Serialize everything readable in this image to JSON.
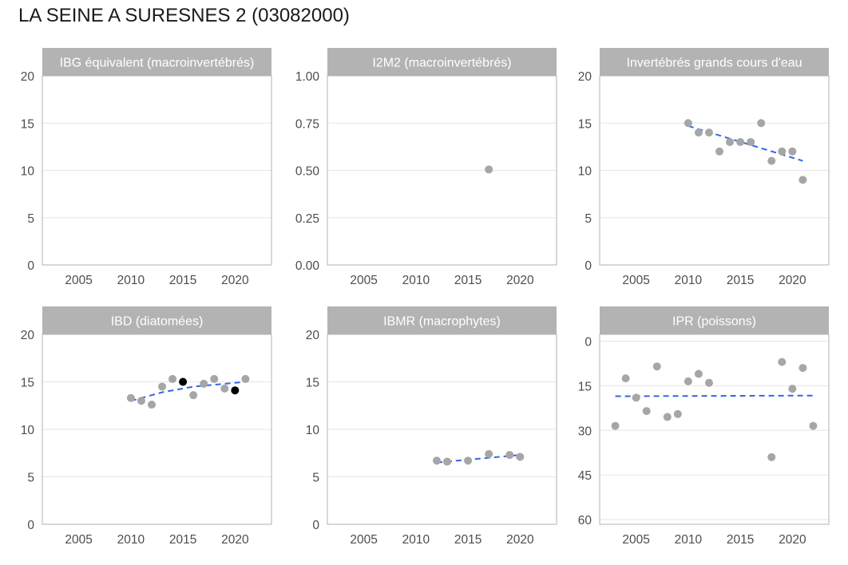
{
  "page": {
    "title": "LA SEINE A SURESNES 2 (03082000)"
  },
  "chart_data": [
    {
      "type": "scatter",
      "title": "IBG équivalent (macroinvertébrés)",
      "xlim": [
        2001.5,
        2023.5
      ],
      "ylim": [
        0,
        20
      ],
      "x_ticks": [
        2005,
        2010,
        2015,
        2020
      ],
      "y_ticks": [
        0,
        5,
        10,
        15,
        20
      ],
      "y_tick_labels": [
        "0",
        "5",
        "10",
        "15",
        "20"
      ],
      "y_reversed": false,
      "points": [],
      "trend": null
    },
    {
      "type": "scatter",
      "title": "I2M2 (macroinvertébrés)",
      "xlim": [
        2001.5,
        2023.5
      ],
      "ylim": [
        0,
        1
      ],
      "x_ticks": [
        2005,
        2010,
        2015,
        2020
      ],
      "y_ticks": [
        0,
        0.25,
        0.5,
        0.75,
        1
      ],
      "y_tick_labels": [
        "0.00",
        "0.25",
        "0.50",
        "0.75",
        "1.00"
      ],
      "y_reversed": false,
      "points": [
        {
          "x": 2017,
          "y": 0.505,
          "color": "#a6a6a6"
        }
      ],
      "trend": null
    },
    {
      "type": "scatter",
      "title": "Invertébrés grands cours d'eau",
      "xlim": [
        2001.5,
        2023.5
      ],
      "ylim": [
        0,
        20
      ],
      "x_ticks": [
        2005,
        2010,
        2015,
        2020
      ],
      "y_ticks": [
        0,
        5,
        10,
        15,
        20
      ],
      "y_tick_labels": [
        "0",
        "5",
        "10",
        "15",
        "20"
      ],
      "y_reversed": false,
      "points": [
        {
          "x": 2010,
          "y": 15,
          "color": "#a6a6a6"
        },
        {
          "x": 2011,
          "y": 14,
          "color": "#a6a6a6"
        },
        {
          "x": 2012,
          "y": 14,
          "color": "#a6a6a6"
        },
        {
          "x": 2013,
          "y": 12,
          "color": "#a6a6a6"
        },
        {
          "x": 2014,
          "y": 13,
          "color": "#a6a6a6"
        },
        {
          "x": 2015,
          "y": 13,
          "color": "#a6a6a6"
        },
        {
          "x": 2016,
          "y": 13,
          "color": "#a6a6a6"
        },
        {
          "x": 2017,
          "y": 15,
          "color": "#a6a6a6"
        },
        {
          "x": 2018,
          "y": 11,
          "color": "#a6a6a6"
        },
        {
          "x": 2019,
          "y": 12,
          "color": "#a6a6a6"
        },
        {
          "x": 2020,
          "y": 12,
          "color": "#a6a6a6"
        },
        {
          "x": 2021,
          "y": 9,
          "color": "#a6a6a6"
        }
      ],
      "trend": {
        "x": [
          2010,
          2021
        ],
        "y": [
          14.7,
          11.0
        ],
        "color": "#3366e6"
      }
    },
    {
      "type": "scatter",
      "title": "IBD (diatomées)",
      "xlim": [
        2001.5,
        2023.5
      ],
      "ylim": [
        0,
        20
      ],
      "x_ticks": [
        2005,
        2010,
        2015,
        2020
      ],
      "y_ticks": [
        0,
        5,
        10,
        15,
        20
      ],
      "y_tick_labels": [
        "0",
        "5",
        "10",
        "15",
        "20"
      ],
      "y_reversed": false,
      "points": [
        {
          "x": 2010,
          "y": 13.3,
          "color": "#a6a6a6"
        },
        {
          "x": 2011,
          "y": 13.0,
          "color": "#a6a6a6"
        },
        {
          "x": 2012,
          "y": 12.6,
          "color": "#a6a6a6"
        },
        {
          "x": 2013,
          "y": 14.5,
          "color": "#a6a6a6"
        },
        {
          "x": 2014,
          "y": 15.3,
          "color": "#a6a6a6"
        },
        {
          "x": 2015,
          "y": 15.0,
          "color": "#000000"
        },
        {
          "x": 2016,
          "y": 13.6,
          "color": "#a6a6a6"
        },
        {
          "x": 2017,
          "y": 14.8,
          "color": "#a6a6a6"
        },
        {
          "x": 2018,
          "y": 15.3,
          "color": "#a6a6a6"
        },
        {
          "x": 2019,
          "y": 14.3,
          "color": "#a6a6a6"
        },
        {
          "x": 2020,
          "y": 14.1,
          "color": "#000000"
        },
        {
          "x": 2021,
          "y": 15.3,
          "color": "#a6a6a6"
        }
      ],
      "trend": {
        "x": [
          2010,
          2013,
          2016,
          2019,
          2021
        ],
        "y": [
          13.0,
          13.9,
          14.5,
          14.8,
          15.0
        ],
        "color": "#3366e6"
      }
    },
    {
      "type": "scatter",
      "title": "IBMR (macrophytes)",
      "xlim": [
        2001.5,
        2023.5
      ],
      "ylim": [
        0,
        20
      ],
      "x_ticks": [
        2005,
        2010,
        2015,
        2020
      ],
      "y_ticks": [
        0,
        5,
        10,
        15,
        20
      ],
      "y_tick_labels": [
        "0",
        "5",
        "10",
        "15",
        "20"
      ],
      "y_reversed": false,
      "points": [
        {
          "x": 2012,
          "y": 6.7,
          "color": "#a6a6a6"
        },
        {
          "x": 2013,
          "y": 6.6,
          "color": "#a6a6a6"
        },
        {
          "x": 2015,
          "y": 6.7,
          "color": "#a6a6a6"
        },
        {
          "x": 2017,
          "y": 7.4,
          "color": "#a6a6a6"
        },
        {
          "x": 2019,
          "y": 7.3,
          "color": "#a6a6a6"
        },
        {
          "x": 2020,
          "y": 7.1,
          "color": "#a6a6a6"
        }
      ],
      "trend": {
        "x": [
          2012,
          2020
        ],
        "y": [
          6.5,
          7.3
        ],
        "color": "#3366e6"
      }
    },
    {
      "type": "scatter",
      "title": "IPR (poissons)",
      "xlim": [
        2001.5,
        2023.5
      ],
      "ylim": [
        -2.3,
        61.6
      ],
      "x_ticks": [
        2005,
        2010,
        2015,
        2020
      ],
      "y_ticks": [
        0,
        15,
        30,
        45,
        60
      ],
      "y_tick_labels": [
        "0",
        "15",
        "30",
        "45",
        "60"
      ],
      "y_reversed": true,
      "points": [
        {
          "x": 2003,
          "y": 28.5,
          "color": "#a6a6a6"
        },
        {
          "x": 2004,
          "y": 12.5,
          "color": "#a6a6a6"
        },
        {
          "x": 2005,
          "y": 19.0,
          "color": "#a6a6a6"
        },
        {
          "x": 2006,
          "y": 23.5,
          "color": "#a6a6a6"
        },
        {
          "x": 2007,
          "y": 8.5,
          "color": "#a6a6a6"
        },
        {
          "x": 2008,
          "y": 25.5,
          "color": "#a6a6a6"
        },
        {
          "x": 2009,
          "y": 24.5,
          "color": "#a6a6a6"
        },
        {
          "x": 2010,
          "y": 13.5,
          "color": "#a6a6a6"
        },
        {
          "x": 2011,
          "y": 11.0,
          "color": "#a6a6a6"
        },
        {
          "x": 2012,
          "y": 14.0,
          "color": "#a6a6a6"
        },
        {
          "x": 2018,
          "y": 39.0,
          "color": "#a6a6a6"
        },
        {
          "x": 2019,
          "y": 7.0,
          "color": "#a6a6a6"
        },
        {
          "x": 2020,
          "y": 16.0,
          "color": "#a6a6a6"
        },
        {
          "x": 2021,
          "y": 9.0,
          "color": "#a6a6a6"
        },
        {
          "x": 2022,
          "y": 28.5,
          "color": "#a6a6a6"
        }
      ],
      "trend": {
        "x": [
          2003,
          2022
        ],
        "y": [
          18.5,
          18.3
        ],
        "color": "#3366e6"
      }
    }
  ]
}
